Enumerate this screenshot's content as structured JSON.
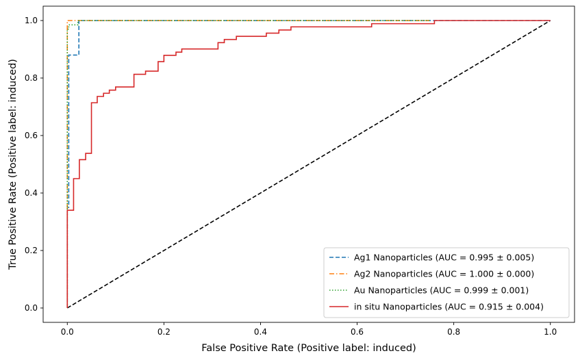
{
  "chart_data": {
    "type": "line",
    "title": "",
    "xlabel": "False Positive Rate (Positive label: induced)",
    "ylabel": "True Positive Rate (Positive label: induced)",
    "xlim": [
      -0.05,
      1.05
    ],
    "ylim": [
      -0.05,
      1.05
    ],
    "xticks": [
      0.0,
      0.2,
      0.4,
      0.6,
      0.8,
      1.0
    ],
    "xtick_labels": [
      "0.0",
      "0.2",
      "0.4",
      "0.6",
      "0.8",
      "1.0"
    ],
    "yticks": [
      0.0,
      0.2,
      0.4,
      0.6,
      0.8,
      1.0
    ],
    "ytick_labels": [
      "0.0",
      "0.2",
      "0.4",
      "0.6",
      "0.8",
      "1.0"
    ],
    "grid": false,
    "legend": "lower-right",
    "series": [
      {
        "name": "Ag1 Nanoparticles (AUC = 0.995 ± 0.005)",
        "color": "#1f77b4",
        "dash": "dashed",
        "x": [
          0,
          0,
          0.003,
          0.003,
          0.024,
          0.024,
          0.035,
          1.0
        ],
        "y": [
          0,
          0.35,
          0.35,
          0.88,
          0.88,
          1.0,
          1.0,
          1.0
        ]
      },
      {
        "name": "Ag2 Nanoparticles (AUC = 1.000 ± 0.000)",
        "color": "#ff7f0e",
        "dash": "dashdot",
        "x": [
          0,
          0,
          0.75
        ],
        "y": [
          0,
          1.0,
          1.0
        ]
      },
      {
        "name": "Au Nanoparticles (AUC = 0.999 ± 0.001)",
        "color": "#2ca02c",
        "dash": "dotted",
        "x": [
          0,
          0,
          0.003,
          0.003,
          0.022,
          0.022,
          0.75
        ],
        "y": [
          0,
          0.97,
          0.97,
          0.985,
          0.985,
          1.0,
          1.0
        ]
      },
      {
        "name": "in situ Nanoparticles (AUC = 0.915 ± 0.004)",
        "color": "#d62728",
        "dash": "solid",
        "x": [
          0.0,
          0.0,
          0.013,
          0.013,
          0.025,
          0.025,
          0.038,
          0.038,
          0.05,
          0.05,
          0.062,
          0.062,
          0.075,
          0.075,
          0.087,
          0.087,
          0.1,
          0.1,
          0.138,
          0.138,
          0.162,
          0.162,
          0.188,
          0.188,
          0.2,
          0.2,
          0.225,
          0.225,
          0.237,
          0.237,
          0.312,
          0.312,
          0.325,
          0.325,
          0.35,
          0.35,
          0.412,
          0.412,
          0.438,
          0.438,
          0.463,
          0.463,
          0.63,
          0.63,
          0.76,
          0.76,
          1.0
        ],
        "y": [
          0.0,
          0.34,
          0.34,
          0.45,
          0.45,
          0.516,
          0.516,
          0.538,
          0.538,
          0.714,
          0.714,
          0.736,
          0.736,
          0.747,
          0.747,
          0.758,
          0.758,
          0.769,
          0.769,
          0.813,
          0.813,
          0.824,
          0.824,
          0.857,
          0.857,
          0.879,
          0.879,
          0.89,
          0.89,
          0.901,
          0.901,
          0.923,
          0.923,
          0.934,
          0.934,
          0.945,
          0.945,
          0.956,
          0.956,
          0.967,
          0.967,
          0.978,
          0.978,
          0.989,
          0.989,
          1.0,
          1.0
        ]
      }
    ],
    "reference_line": {
      "color": "#000000",
      "dash": "dashed",
      "x": [
        0,
        1
      ],
      "y": [
        0,
        1
      ]
    }
  }
}
